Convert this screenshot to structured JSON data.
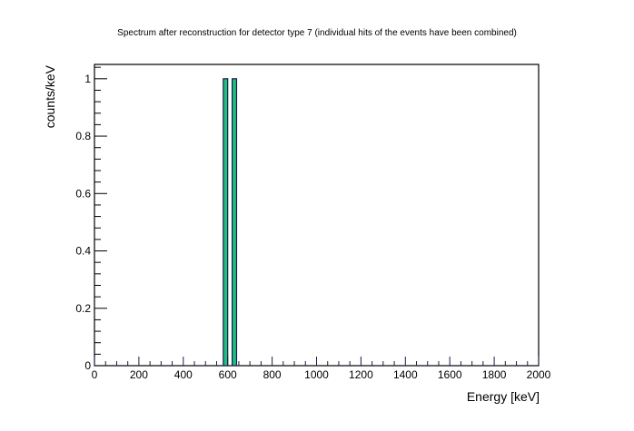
{
  "chart_data": {
    "type": "bar",
    "title": "Spectrum after reconstruction for detector type 7 (individual hits of the events have been combined)",
    "xlabel": "Energy [keV]",
    "ylabel": "counts/keV",
    "xlim": [
      0,
      2000
    ],
    "ylim": [
      0,
      1.05
    ],
    "x_ticks": [
      "0",
      "200",
      "400",
      "600",
      "800",
      "1000",
      "1200",
      "1400",
      "1600",
      "1800",
      "2000"
    ],
    "y_ticks": [
      "0",
      "0.2",
      "0.4",
      "0.6",
      "0.8",
      "1"
    ],
    "bins": [
      {
        "x_low": 580,
        "x_high": 600,
        "value": 1
      },
      {
        "x_low": 620,
        "x_high": 640,
        "value": 1
      }
    ],
    "grid": false,
    "legend": "none",
    "colors": {
      "bar_fill": "#1fbf7f",
      "bar_edge": "#1a1a4a",
      "axis": "#000000"
    }
  }
}
